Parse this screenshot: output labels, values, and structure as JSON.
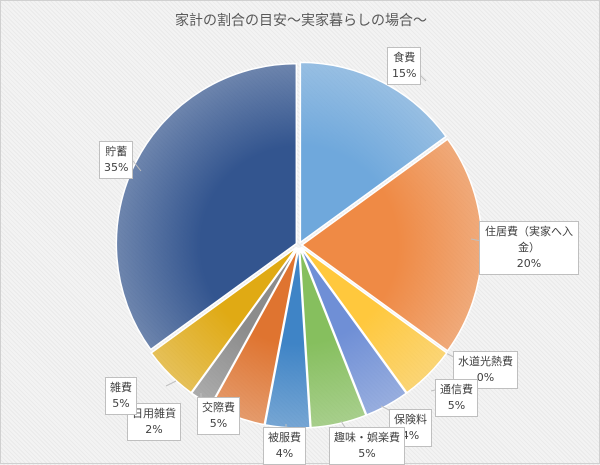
{
  "chart_data": {
    "type": "pie",
    "title": "家計の割合の目安〜実家暮らしの場合〜",
    "start_angle_deg": 0,
    "direction": "clockwise",
    "slices": [
      {
        "label": "食費",
        "value": 15,
        "value_label": "15%",
        "color": "#6fa8dc"
      },
      {
        "label": "住居費（実家へ入金）",
        "value": 20,
        "value_label": "20%",
        "color": "#ef8a45"
      },
      {
        "label": "水道光熱費",
        "value": 0,
        "value_label": "0%",
        "color": "#a5a5a5"
      },
      {
        "label": "通信費",
        "value": 5,
        "value_label": "5%",
        "color": "#ffc83d"
      },
      {
        "label": "保険料",
        "value": 4,
        "value_label": "4%",
        "color": "#6f8fd6"
      },
      {
        "label": "趣味・娯楽費",
        "value": 5,
        "value_label": "5%",
        "color": "#86bf5e"
      },
      {
        "label": "被服費",
        "value": 4,
        "value_label": "4%",
        "color": "#3f84c6"
      },
      {
        "label": "交際費",
        "value": 5,
        "value_label": "5%",
        "color": "#df7430"
      },
      {
        "label": "日用雑貨",
        "value": 2,
        "value_label": "2%",
        "color": "#8c8c8c"
      },
      {
        "label": "雑費",
        "value": 5,
        "value_label": "5%",
        "color": "#e0aa14"
      },
      {
        "label": "貯蓄",
        "value": 35,
        "value_label": "35%",
        "color": "#33558f"
      }
    ]
  }
}
